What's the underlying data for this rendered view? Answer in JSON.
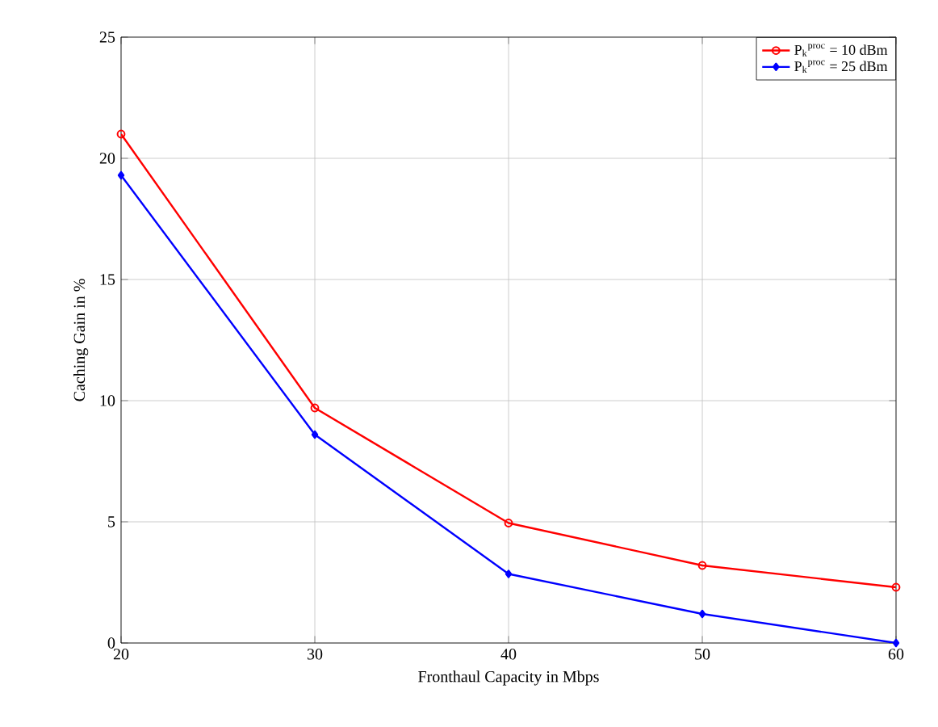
{
  "chart_data": {
    "type": "line",
    "xlabel": "Fronthaul Capacity in Mbps",
    "ylabel": "Caching Gain in %",
    "x": [
      20,
      30,
      40,
      50,
      60
    ],
    "series": [
      {
        "name": "P$_{k}$$^{proc}$ = 10 dBm",
        "color": "#ff0000",
        "marker": "circle",
        "values": [
          21,
          9.7,
          4.95,
          3.2,
          2.3
        ]
      },
      {
        "name": "P$_{k}$$^{proc}$ = 25 dBm",
        "color": "#0000ff",
        "marker": "diamond",
        "values": [
          19.3,
          8.6,
          2.85,
          1.2,
          0
        ]
      }
    ],
    "xlim": [
      20,
      60
    ],
    "ylim": [
      0,
      25
    ],
    "xticks": [
      20,
      30,
      40,
      50,
      60
    ],
    "yticks": [
      0,
      5,
      10,
      15,
      20,
      25
    ],
    "grid": true,
    "legend": "top right",
    "line_style": "solid"
  }
}
